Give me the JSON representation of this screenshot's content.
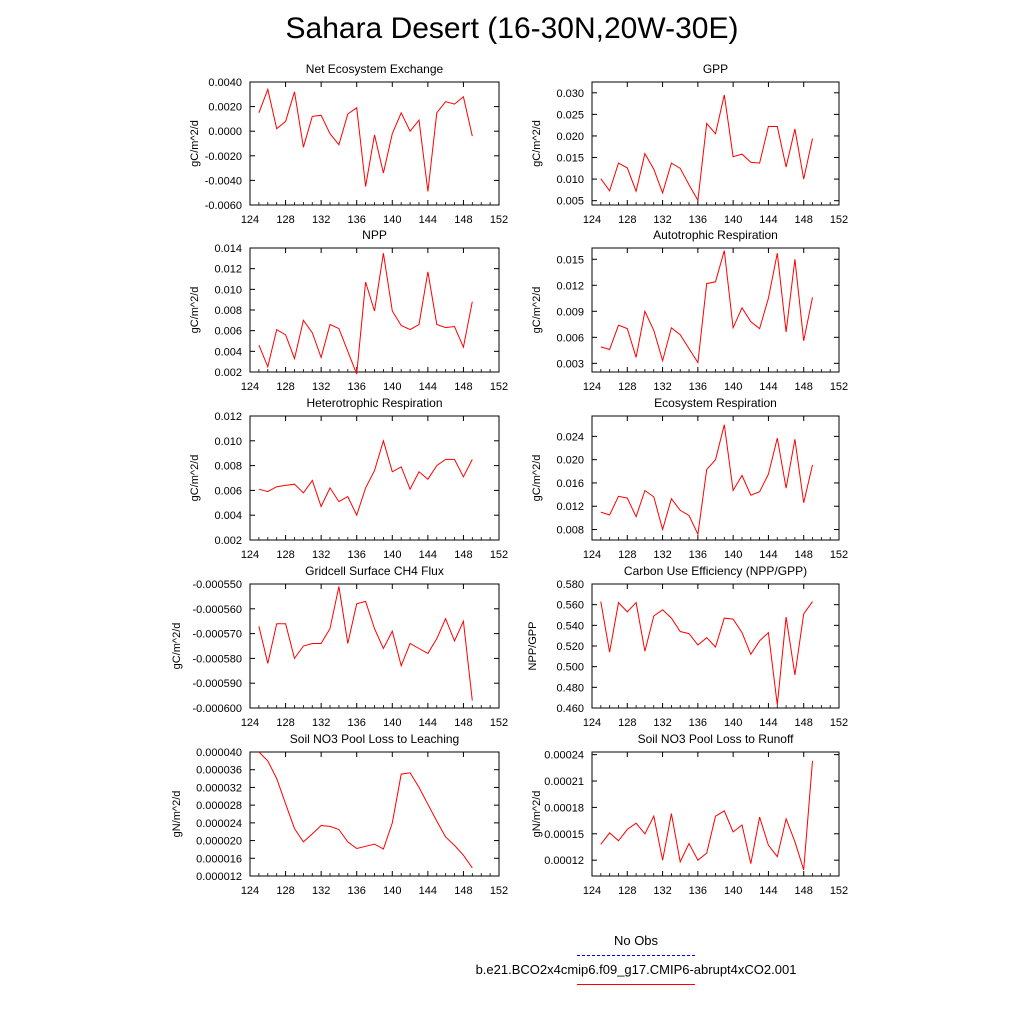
{
  "title": "Sahara Desert (16-30N,20W-30E)",
  "line_color": "#ff0000",
  "obs_color": "#0000ff",
  "legend": {
    "obs_label": "No Obs",
    "model_label": "b.e21.BCO2x4cmip6.f09_g17.CMIP6-abrupt4xCO2.001"
  },
  "chart_data": [
    {
      "type": "line",
      "title": "Net Ecosystem Exchange",
      "ylabel": "gC/m^2/d",
      "xlim": [
        124,
        152
      ],
      "xticks": [
        124,
        128,
        132,
        136,
        140,
        144,
        148,
        152
      ],
      "ylim": [
        -0.006,
        0.004
      ],
      "yticks": [
        "-0.0060",
        "-0.0040",
        "-0.0020",
        "0.0000",
        "0.0020",
        "0.0040"
      ],
      "x": [
        125,
        126,
        127,
        128,
        129,
        130,
        131,
        132,
        133,
        134,
        135,
        136,
        137,
        138,
        139,
        140,
        141,
        142,
        143,
        144,
        145,
        146,
        147,
        148,
        149
      ],
      "y": [
        0.0015,
        0.0034,
        0.0002,
        0.0008,
        0.0032,
        -0.0013,
        0.0012,
        0.0013,
        -0.0002,
        -0.0011,
        0.0014,
        0.0019,
        -0.0045,
        -0.0003,
        -0.0034,
        -0.0002,
        0.0015,
        0.0,
        0.0009,
        -0.0049,
        0.0015,
        0.0024,
        0.0022,
        0.0028,
        -0.0004
      ]
    },
    {
      "type": "line",
      "title": "GPP",
      "ylabel": "gC/m^2/d",
      "xlim": [
        124,
        152
      ],
      "xticks": [
        124,
        128,
        132,
        136,
        140,
        144,
        148,
        152
      ],
      "ylim": [
        0.004,
        0.0325
      ],
      "yticks": [
        "0.005",
        "0.010",
        "0.015",
        "0.020",
        "0.025",
        "0.030"
      ],
      "x": [
        125,
        126,
        127,
        128,
        129,
        130,
        131,
        132,
        133,
        134,
        135,
        136,
        137,
        138,
        139,
        140,
        141,
        142,
        143,
        144,
        145,
        146,
        147,
        148,
        149
      ],
      "y": [
        0.0101,
        0.0073,
        0.0137,
        0.0126,
        0.0072,
        0.0159,
        0.0123,
        0.0068,
        0.0137,
        0.0125,
        0.0087,
        0.0051,
        0.0229,
        0.0205,
        0.0295,
        0.0152,
        0.0158,
        0.0139,
        0.0137,
        0.0222,
        0.0222,
        0.0128,
        0.0216,
        0.01,
        0.0194
      ]
    },
    {
      "type": "line",
      "title": "NPP",
      "ylabel": "gC/m^2/d",
      "xlim": [
        124,
        152
      ],
      "xticks": [
        124,
        128,
        132,
        136,
        140,
        144,
        148,
        152
      ],
      "ylim": [
        0.002,
        0.014
      ],
      "yticks": [
        "0.002",
        "0.004",
        "0.006",
        "0.008",
        "0.010",
        "0.012",
        "0.014"
      ],
      "x": [
        125,
        126,
        127,
        128,
        129,
        130,
        131,
        132,
        133,
        134,
        135,
        136,
        137,
        138,
        139,
        140,
        141,
        142,
        143,
        144,
        145,
        146,
        147,
        148,
        149
      ],
      "y": [
        0.0046,
        0.0025,
        0.0061,
        0.0056,
        0.0033,
        0.007,
        0.0058,
        0.0034,
        0.0066,
        0.0062,
        0.004,
        0.0018,
        0.0107,
        0.0079,
        0.0135,
        0.0079,
        0.0065,
        0.0061,
        0.0066,
        0.0117,
        0.0066,
        0.0063,
        0.0064,
        0.0044,
        0.0088
      ]
    },
    {
      "type": "line",
      "title": "Autotrophic Respiration",
      "ylabel": "gC/m^2/d",
      "xlim": [
        124,
        152
      ],
      "xticks": [
        124,
        128,
        132,
        136,
        140,
        144,
        148,
        152
      ],
      "ylim": [
        0.002,
        0.0163
      ],
      "yticks": [
        "0.003",
        "0.006",
        "0.009",
        "0.012",
        "0.015"
      ],
      "x": [
        125,
        126,
        127,
        128,
        129,
        130,
        131,
        132,
        133,
        134,
        135,
        136,
        137,
        138,
        139,
        140,
        141,
        142,
        143,
        144,
        145,
        146,
        147,
        148,
        149
      ],
      "y": [
        0.0049,
        0.0046,
        0.0074,
        0.007,
        0.0037,
        0.009,
        0.0068,
        0.0033,
        0.0071,
        0.0063,
        0.0047,
        0.0031,
        0.0122,
        0.0124,
        0.016,
        0.0071,
        0.0094,
        0.0078,
        0.007,
        0.0105,
        0.0157,
        0.0066,
        0.015,
        0.0056,
        0.0106
      ]
    },
    {
      "type": "line",
      "title": "Heterotrophic Respiration",
      "ylabel": "gC/m^2/d",
      "xlim": [
        124,
        152
      ],
      "xticks": [
        124,
        128,
        132,
        136,
        140,
        144,
        148,
        152
      ],
      "ylim": [
        0.002,
        0.012
      ],
      "yticks": [
        "0.002",
        "0.004",
        "0.006",
        "0.008",
        "0.010",
        "0.012"
      ],
      "x": [
        125,
        126,
        127,
        128,
        129,
        130,
        131,
        132,
        133,
        134,
        135,
        136,
        137,
        138,
        139,
        140,
        141,
        142,
        143,
        144,
        145,
        146,
        147,
        148,
        149
      ],
      "y": [
        0.0061,
        0.0059,
        0.0063,
        0.0064,
        0.0065,
        0.0058,
        0.0068,
        0.0047,
        0.0062,
        0.0051,
        0.0055,
        0.004,
        0.0062,
        0.0076,
        0.01,
        0.0075,
        0.0079,
        0.0061,
        0.0075,
        0.0069,
        0.008,
        0.0085,
        0.0085,
        0.0071,
        0.0085
      ]
    },
    {
      "type": "line",
      "title": "Ecosystem Respiration",
      "ylabel": "gC/m^2/d",
      "xlim": [
        124,
        152
      ],
      "xticks": [
        124,
        128,
        132,
        136,
        140,
        144,
        148,
        152
      ],
      "ylim": [
        0.0062,
        0.0275
      ],
      "yticks": [
        "0.008",
        "0.012",
        "0.016",
        "0.020",
        "0.024"
      ],
      "x": [
        125,
        126,
        127,
        128,
        129,
        130,
        131,
        132,
        133,
        134,
        135,
        136,
        137,
        138,
        139,
        140,
        141,
        142,
        143,
        144,
        145,
        146,
        147,
        148,
        149
      ],
      "y": [
        0.011,
        0.0105,
        0.0137,
        0.0134,
        0.0102,
        0.0147,
        0.0136,
        0.008,
        0.0133,
        0.0113,
        0.0104,
        0.0072,
        0.0183,
        0.02,
        0.026,
        0.0147,
        0.0173,
        0.0139,
        0.0145,
        0.0175,
        0.0237,
        0.0151,
        0.0235,
        0.0126,
        0.0191
      ]
    },
    {
      "type": "line",
      "title": "Gridcell Surface CH4 Flux",
      "ylabel": "gC/m^2/d",
      "xlim": [
        124,
        152
      ],
      "xticks": [
        124,
        128,
        132,
        136,
        140,
        144,
        148,
        152
      ],
      "ylim": [
        -0.0006,
        -0.00055
      ],
      "yticks": [
        "-0.000600",
        "-0.000590",
        "-0.000580",
        "-0.000570",
        "-0.000560",
        "-0.000550"
      ],
      "x": [
        125,
        126,
        127,
        128,
        129,
        130,
        131,
        132,
        133,
        134,
        135,
        136,
        137,
        138,
        139,
        140,
        141,
        142,
        143,
        144,
        145,
        146,
        147,
        148,
        149
      ],
      "y": [
        -0.000567,
        -0.000582,
        -0.000566,
        -0.000566,
        -0.00058,
        -0.000575,
        -0.000574,
        -0.000574,
        -0.000568,
        -0.000551,
        -0.000574,
        -0.000558,
        -0.000557,
        -0.000568,
        -0.000576,
        -0.000569,
        -0.000583,
        -0.000574,
        -0.000576,
        -0.000578,
        -0.000572,
        -0.000564,
        -0.000573,
        -0.000565,
        -0.000597
      ]
    },
    {
      "type": "line",
      "title": "Carbon Use Efficiency (NPP/GPP)",
      "ylabel": "NPP/GPP",
      "xlim": [
        124,
        152
      ],
      "xticks": [
        124,
        128,
        132,
        136,
        140,
        144,
        148,
        152
      ],
      "ylim": [
        0.46,
        0.58
      ],
      "yticks": [
        "0.460",
        "0.480",
        "0.500",
        "0.520",
        "0.540",
        "0.560",
        "0.580"
      ],
      "x": [
        125,
        126,
        127,
        128,
        129,
        130,
        131,
        132,
        133,
        134,
        135,
        136,
        137,
        138,
        139,
        140,
        141,
        142,
        143,
        144,
        145,
        146,
        147,
        148,
        149
      ],
      "y": [
        0.563,
        0.514,
        0.562,
        0.553,
        0.562,
        0.515,
        0.549,
        0.555,
        0.547,
        0.534,
        0.532,
        0.521,
        0.528,
        0.519,
        0.547,
        0.546,
        0.533,
        0.512,
        0.525,
        0.533,
        0.463,
        0.548,
        0.492,
        0.551,
        0.563
      ]
    },
    {
      "type": "line",
      "title": "Soil NO3 Pool Loss to Leaching",
      "ylabel": "gN/m^2/d",
      "xlim": [
        124,
        152
      ],
      "xticks": [
        124,
        128,
        132,
        136,
        140,
        144,
        148,
        152
      ],
      "ylim": [
        1.2e-05,
        4e-05
      ],
      "yticks": [
        "0.000012",
        "0.000016",
        "0.000020",
        "0.000024",
        "0.000028",
        "0.000032",
        "0.000036",
        "0.000040"
      ],
      "x": [
        125,
        126,
        127,
        128,
        129,
        130,
        131,
        132,
        133,
        134,
        135,
        136,
        137,
        138,
        139,
        140,
        141,
        142,
        143,
        144,
        145,
        146,
        147,
        148,
        149
      ],
      "y": [
        4e-05,
        3.8e-05,
        3.4e-05,
        2.83e-05,
        2.27e-05,
        1.97e-05,
        2.15e-05,
        2.34e-05,
        2.32e-05,
        2.25e-05,
        1.97e-05,
        1.82e-05,
        1.87e-05,
        1.92e-05,
        1.81e-05,
        2.4e-05,
        3.5e-05,
        3.53e-05,
        3.2e-05,
        2.82e-05,
        2.44e-05,
        2.08e-05,
        1.89e-05,
        1.67e-05,
        1.38e-05
      ]
    },
    {
      "type": "line",
      "title": "Soil NO3 Pool Loss to Runoff",
      "ylabel": "gN/m^2/d",
      "xlim": [
        124,
        152
      ],
      "xticks": [
        124,
        128,
        132,
        136,
        140,
        144,
        148,
        152
      ],
      "ylim": [
        0.000102,
        0.000243
      ],
      "yticks": [
        "0.00012",
        "0.00015",
        "0.00018",
        "0.00021",
        "0.00024"
      ],
      "x": [
        125,
        126,
        127,
        128,
        129,
        130,
        131,
        132,
        133,
        134,
        135,
        136,
        137,
        138,
        139,
        140,
        141,
        142,
        143,
        144,
        145,
        146,
        147,
        148,
        149
      ],
      "y": [
        0.000138,
        0.000151,
        0.000142,
        0.000155,
        0.000162,
        0.00015,
        0.00017,
        0.00012,
        0.000173,
        0.000118,
        0.000139,
        0.00012,
        0.000128,
        0.00017,
        0.000176,
        0.000152,
        0.00016,
        0.000116,
        0.000169,
        0.000137,
        0.000124,
        0.000167,
        0.000141,
        0.000109,
        0.000233
      ]
    }
  ]
}
